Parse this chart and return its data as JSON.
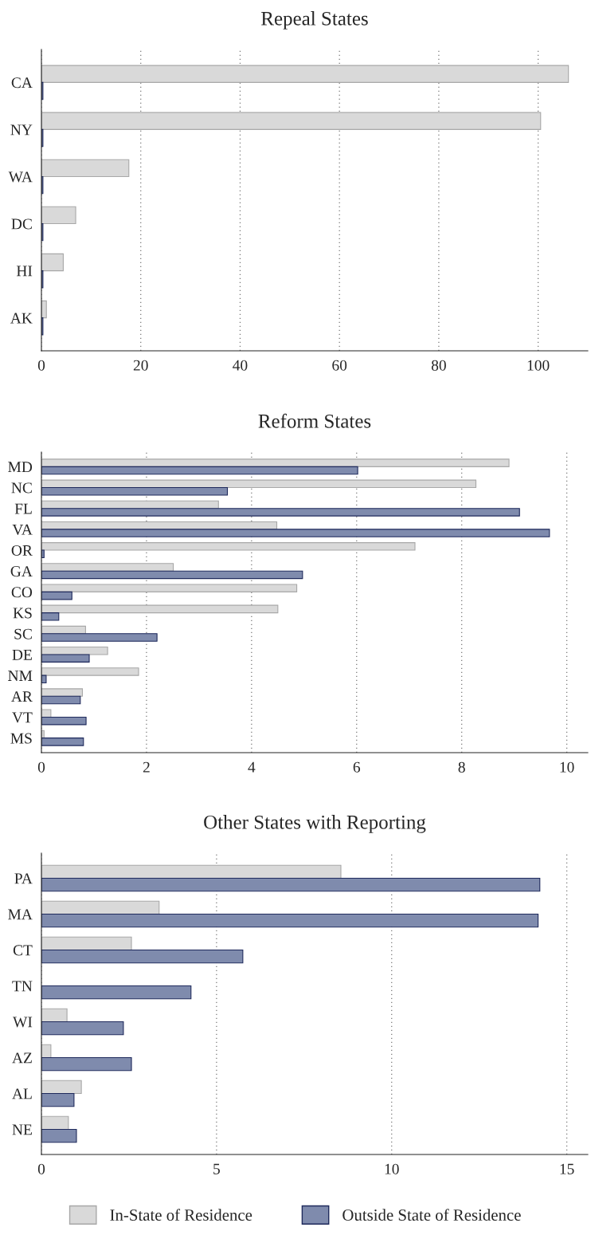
{
  "chart_data": [
    {
      "type": "bar",
      "orientation": "horizontal",
      "title": "Repeal States",
      "categories": [
        "CA",
        "NY",
        "WA",
        "DC",
        "HI",
        "AK"
      ],
      "series": [
        {
          "color": "#d9d9d9",
          "values": [
            106.1,
            100.5,
            17.6,
            6.9,
            4.4,
            1.0
          ]
        },
        {
          "color": "#7f8bad",
          "values": [
            0.3,
            0.3,
            0.3,
            0.3,
            0.3,
            0.3
          ]
        }
      ],
      "xlim": [
        0,
        110
      ],
      "xticks": [
        0,
        20,
        40,
        60,
        80,
        100
      ],
      "grid": "x"
    },
    {
      "type": "bar",
      "orientation": "horizontal",
      "title": "Reform States",
      "categories": [
        "MD",
        "NC",
        "FL",
        "VA",
        "OR",
        "GA",
        "CO",
        "KS",
        "SC",
        "DE",
        "NM",
        "AR",
        "VT",
        "MS"
      ],
      "series": [
        {
          "color": "#d9d9d9",
          "values": [
            8.9,
            8.27,
            3.37,
            4.48,
            7.11,
            2.51,
            4.86,
            4.5,
            0.84,
            1.26,
            1.85,
            0.78,
            0.18,
            0.05
          ]
        },
        {
          "color": "#7f8bad",
          "values": [
            6.02,
            3.54,
            9.1,
            9.67,
            0.05,
            4.97,
            0.58,
            0.33,
            2.2,
            0.91,
            0.09,
            0.74,
            0.85,
            0.8
          ]
        }
      ],
      "xlim": [
        0,
        10.4
      ],
      "xticks": [
        0,
        2,
        4,
        6,
        8,
        10
      ],
      "grid": "x"
    },
    {
      "type": "bar",
      "orientation": "horizontal",
      "title": "Other States with Reporting",
      "categories": [
        "PA",
        "MA",
        "CT",
        "TN",
        "WI",
        "AZ",
        "AL",
        "NE"
      ],
      "series": [
        {
          "name": "In-State of Residence",
          "color": "#d9d9d9",
          "values": [
            8.55,
            3.36,
            2.57,
            null,
            0.73,
            0.27,
            1.14,
            0.77
          ]
        },
        {
          "name": "Outside State of Residence",
          "color": "#7f8bad",
          "values": [
            14.23,
            14.18,
            5.75,
            4.27,
            2.34,
            2.57,
            0.93,
            1.0
          ]
        }
      ],
      "xlim": [
        0,
        15.6
      ],
      "xticks": [
        0,
        5,
        10,
        15
      ],
      "grid": "x",
      "legend": "bottom"
    }
  ]
}
